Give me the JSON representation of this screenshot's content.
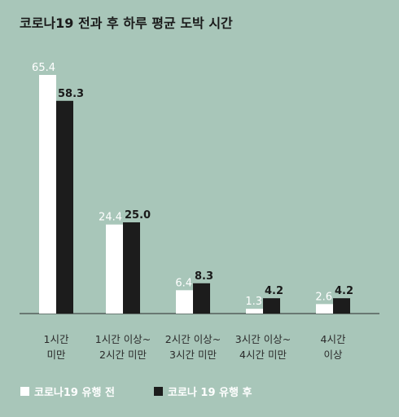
{
  "chart_data": {
    "type": "bar",
    "title": "코로나19 전과 후 하루 평균 도박 시간",
    "categories": [
      [
        "1시간",
        "미만"
      ],
      [
        "1시간 이상~",
        "2시간 미만"
      ],
      [
        "2시간 이상~",
        "3시간 미만"
      ],
      [
        "3시간 이상~",
        "4시간 미만"
      ],
      [
        "4시간",
        "이상"
      ]
    ],
    "series": [
      {
        "name": "코로나19 유행 전",
        "values": [
          65.4,
          24.4,
          6.4,
          1.3,
          2.6
        ],
        "color": "#ffffff"
      },
      {
        "name": "코로나 19 유행 후",
        "values": [
          58.3,
          25.0,
          8.3,
          4.2,
          4.2
        ],
        "color": "#1c1c1c"
      }
    ],
    "ylim": [
      0,
      65.4
    ],
    "grid": false,
    "legend_position": "bottom-left"
  }
}
